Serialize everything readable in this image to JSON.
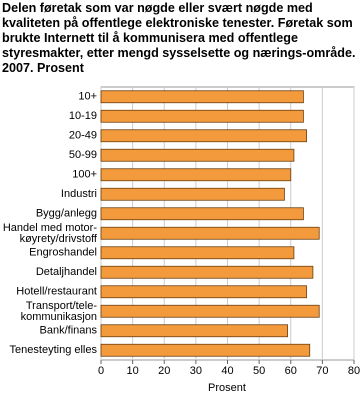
{
  "chart_data": {
    "type": "hbar",
    "title": "Delen føretak som var nøgde eller svært nøgde med kvaliteten på offentlege elektroniske tenester. Føretak som brukte Internett til å kommunisera med offentlege styresmakter, etter mengd sysselsette og nærings-område. 2007. Prosent",
    "categories": [
      "10+",
      "10-19",
      "20-49",
      "50-99",
      "100+",
      "Industri",
      "Bygg/anlegg",
      "Handel med motor-\nkøyrety/drivstoff",
      "Engroshandel",
      "Detaljhandel",
      "Hotell/restaurant",
      "Transport/tele-\nkommunikasjon",
      "Bank/finans",
      "Tenesteyting elles"
    ],
    "values": [
      64,
      64,
      65,
      61,
      60,
      58,
      64,
      69,
      61,
      67,
      65,
      69,
      59,
      66
    ],
    "color": "#f39a3c",
    "xlabel": "Prosent",
    "xlim": [
      0,
      80
    ],
    "xticks": [
      0,
      10,
      20,
      30,
      40,
      50,
      60,
      70,
      80
    ],
    "grid": true
  }
}
